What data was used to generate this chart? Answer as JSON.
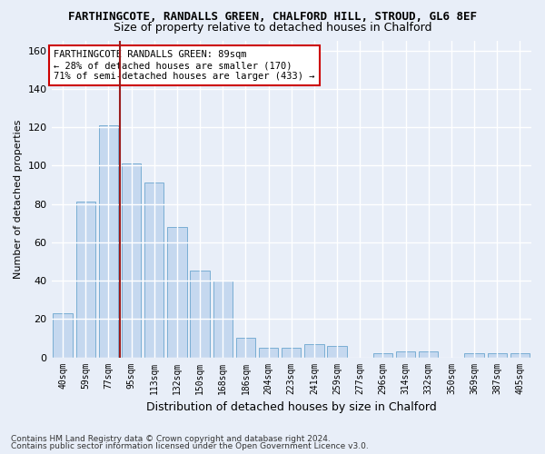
{
  "title1": "FARTHINGCOTE, RANDALLS GREEN, CHALFORD HILL, STROUD, GL6 8EF",
  "title2": "Size of property relative to detached houses in Chalford",
  "xlabel": "Distribution of detached houses by size in Chalford",
  "ylabel": "Number of detached properties",
  "categories": [
    "40sqm",
    "59sqm",
    "77sqm",
    "95sqm",
    "113sqm",
    "132sqm",
    "150sqm",
    "168sqm",
    "186sqm",
    "204sqm",
    "223sqm",
    "241sqm",
    "259sqm",
    "277sqm",
    "296sqm",
    "314sqm",
    "332sqm",
    "350sqm",
    "369sqm",
    "387sqm",
    "405sqm"
  ],
  "values": [
    23,
    81,
    121,
    101,
    91,
    68,
    45,
    40,
    10,
    5,
    5,
    7,
    6,
    0,
    2,
    3,
    3,
    0,
    2,
    2,
    2
  ],
  "bar_color": "#c5d8ef",
  "bar_edge_color": "#7aaed4",
  "vline_color": "#9b1c1c",
  "annotation_text": "FARTHINGCOTE RANDALLS GREEN: 89sqm\n← 28% of detached houses are smaller (170)\n71% of semi-detached houses are larger (433) →",
  "annotation_box_color": "white",
  "annotation_box_edge_color": "#cc0000",
  "ylim": [
    0,
    165
  ],
  "yticks": [
    0,
    20,
    40,
    60,
    80,
    100,
    120,
    140,
    160
  ],
  "footer1": "Contains HM Land Registry data © Crown copyright and database right 2024.",
  "footer2": "Contains public sector information licensed under the Open Government Licence v3.0.",
  "bg_color": "#e8eef8",
  "plot_bg_color": "#e8eef8",
  "grid_color": "#ffffff"
}
